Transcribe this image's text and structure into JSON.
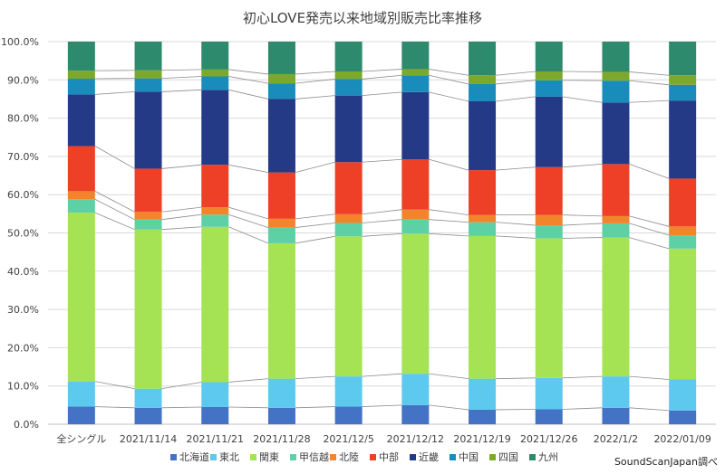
{
  "chart_data": {
    "type": "bar",
    "stacked": true,
    "title": "初心LOVE発売以来地域別販売比率推移",
    "source_note": "SoundScanJapan調べ",
    "categories": [
      "全シングル",
      "2021/11/14",
      "2021/11/21",
      "2021/11/28",
      "2021/12/5",
      "2021/12/12",
      "2021/12/19",
      "2021/12/26",
      "2022/1/2",
      "2022/01/09"
    ],
    "y_ticks": [
      "0.0%",
      "10.0%",
      "20.0%",
      "30.0%",
      "40.0%",
      "50.0%",
      "60.0%",
      "70.0%",
      "80.0%",
      "90.0%",
      "100.0%"
    ],
    "ylim": [
      0,
      100
    ],
    "legend_position": "bottom",
    "grid": true,
    "series_connector_lines": true,
    "series": [
      {
        "name": "北海道",
        "color": "#4472c4",
        "values": [
          4.6,
          4.3,
          4.5,
          4.3,
          4.6,
          5.0,
          3.8,
          3.9,
          4.3,
          3.6
        ]
      },
      {
        "name": "東北",
        "color": "#5dc9ef",
        "values": [
          6.6,
          5.0,
          6.5,
          7.6,
          7.9,
          8.2,
          8.1,
          8.2,
          8.2,
          8.1
        ]
      },
      {
        "name": "関東",
        "color": "#a5e354",
        "values": [
          44.1,
          41.6,
          40.6,
          35.4,
          36.6,
          36.6,
          37.3,
          36.5,
          36.3,
          34.2
        ]
      },
      {
        "name": "甲信越",
        "color": "#5ed0a6",
        "values": [
          3.5,
          2.6,
          3.2,
          4.1,
          3.5,
          3.7,
          3.6,
          3.4,
          3.7,
          3.5
        ]
      },
      {
        "name": "北陸",
        "color": "#f2852c",
        "values": [
          2.1,
          2.0,
          1.9,
          2.3,
          2.3,
          2.6,
          1.9,
          2.7,
          1.9,
          2.3
        ]
      },
      {
        "name": "中部",
        "color": "#ee4027",
        "values": [
          11.8,
          11.3,
          11.1,
          12.1,
          13.6,
          13.1,
          11.7,
          12.5,
          13.6,
          12.5
        ]
      },
      {
        "name": "近畿",
        "color": "#253a86",
        "values": [
          13.5,
          20.1,
          19.6,
          19.2,
          17.4,
          17.6,
          18.0,
          18.4,
          16.1,
          20.4
        ]
      },
      {
        "name": "中国",
        "color": "#1a8cbc",
        "values": [
          4.1,
          3.5,
          3.5,
          4.1,
          4.3,
          4.4,
          4.5,
          4.3,
          5.7,
          4.1
        ]
      },
      {
        "name": "四国",
        "color": "#7da82c",
        "values": [
          2.1,
          2.1,
          1.8,
          2.4,
          2.0,
          1.6,
          2.3,
          2.3,
          2.3,
          2.5
        ]
      },
      {
        "name": "九州",
        "color": "#2e8a6c",
        "values": [
          7.6,
          7.5,
          7.3,
          8.5,
          7.8,
          7.2,
          8.8,
          7.8,
          7.9,
          8.8
        ]
      }
    ]
  },
  "colors": {
    "grid": "#d9d9d9",
    "axis": "#bfbfbf",
    "connector": "#8c8c8c"
  }
}
